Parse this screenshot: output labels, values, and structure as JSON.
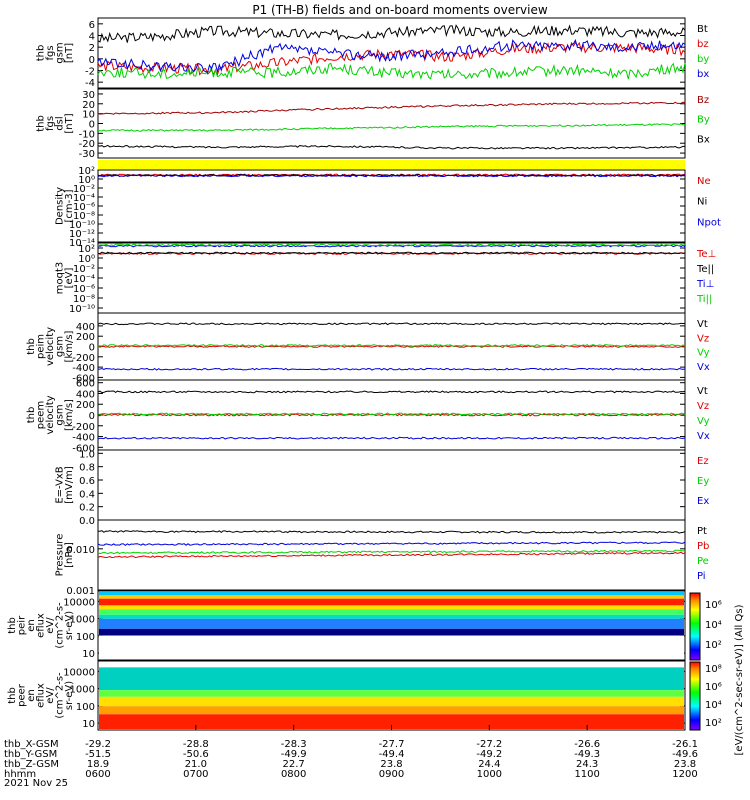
{
  "title": "P1 (TH-B) fields and on-board moments overview",
  "colors": {
    "black": "#000000",
    "red": "#e00000",
    "green": "#00d000",
    "blue": "#0000e0",
    "darkred": "#a00000",
    "yellow": "#ffff00"
  },
  "chart_data": [
    {
      "type": "line",
      "panel": "fgs_gsm",
      "ylabel": [
        "thb",
        "fgs",
        "gsm",
        "[nT]"
      ],
      "ylim": [
        -5,
        7
      ],
      "yticks": [
        "6",
        "4",
        "2",
        "0",
        "-2",
        "-4"
      ],
      "ytickvals": [
        6,
        4,
        2,
        0,
        -2,
        -4
      ],
      "series": [
        {
          "name": "Bt",
          "color": "black",
          "x": [
            0,
            0.1,
            0.2,
            0.3,
            0.4,
            0.5,
            0.6,
            0.7,
            0.8,
            0.9,
            1
          ],
          "y": [
            3.4,
            3.9,
            4.8,
            4.4,
            4.1,
            4.6,
            4.9,
            4.6,
            5.0,
            4.5,
            4.6
          ]
        },
        {
          "name": "bz",
          "color": "red",
          "x": [
            0,
            0.1,
            0.2,
            0.3,
            0.4,
            0.5,
            0.6,
            0.7,
            0.8,
            0.9,
            1
          ],
          "y": [
            -1.2,
            -1.6,
            -1.9,
            -0.8,
            0.4,
            0.9,
            0.3,
            1.6,
            2.0,
            1.9,
            1.5
          ]
        },
        {
          "name": "by",
          "color": "green",
          "x": [
            0,
            0.1,
            0.2,
            0.3,
            0.4,
            0.5,
            0.6,
            0.7,
            0.8,
            0.9,
            1
          ],
          "y": [
            -2.2,
            -2.6,
            -2.3,
            -2.4,
            -1.5,
            -2.5,
            -2.8,
            -2.4,
            -1.9,
            -2.6,
            -1.4
          ]
        },
        {
          "name": "bx",
          "color": "blue",
          "x": [
            0,
            0.1,
            0.2,
            0.3,
            0.4,
            0.5,
            0.6,
            0.7,
            0.8,
            0.9,
            1
          ],
          "y": [
            -0.6,
            -1.3,
            -1.7,
            1.8,
            1.0,
            0.4,
            1.1,
            2.3,
            2.4,
            2.1,
            2.5
          ]
        }
      ]
    },
    {
      "type": "line",
      "panel": "fgs_dsl",
      "ylabel": [
        "thb",
        "fgs",
        "dsl",
        "[nT]"
      ],
      "ylim": [
        -35,
        35
      ],
      "yticks": [
        "30",
        "20",
        "10",
        "0",
        "-10",
        "-20",
        "-30"
      ],
      "ytickvals": [
        30,
        20,
        10,
        0,
        -10,
        -20,
        -30
      ],
      "series": [
        {
          "name": "Bz",
          "color": "darkred",
          "x": [
            0,
            0.2,
            0.4,
            0.6,
            0.8,
            1
          ],
          "y": [
            10,
            11,
            15,
            18,
            20,
            21
          ]
        },
        {
          "name": "By",
          "color": "green",
          "x": [
            0,
            0.2,
            0.4,
            0.6,
            0.8,
            1
          ],
          "y": [
            -7,
            -7,
            -5,
            -3,
            -2,
            -1
          ]
        },
        {
          "name": "Bx",
          "color": "black",
          "x": [
            0,
            0.2,
            0.4,
            0.6,
            0.8,
            1
          ],
          "y": [
            -23,
            -24,
            -23,
            -25,
            -25,
            -24
          ]
        }
      ]
    },
    {
      "type": "line",
      "panel": "density",
      "ylabel": [
        "Density",
        "[cm-3]"
      ],
      "scale": "log",
      "yticks": [
        "10²",
        "10⁰",
        "10⁻²",
        "10⁻⁴",
        "10⁻⁶",
        "10⁻⁸",
        "10⁻¹⁰",
        "10⁻¹²",
        "10⁻¹⁴"
      ],
      "ytickvals": [
        2,
        0,
        -2,
        -4,
        -6,
        -8,
        -10,
        -12,
        -14
      ],
      "ylim": [
        -14,
        2
      ],
      "series": [
        {
          "name": "Ne",
          "color": "red",
          "x": [
            0,
            1
          ],
          "y": [
            0.9,
            0.9
          ]
        },
        {
          "name": "Ni",
          "color": "black",
          "x": [
            0,
            1
          ],
          "y": [
            0.8,
            0.8
          ]
        },
        {
          "name": "Npot",
          "color": "blue",
          "x": [
            0,
            1
          ],
          "y": [
            0.7,
            0.7
          ]
        }
      ]
    },
    {
      "type": "line",
      "panel": "temperature",
      "ylabel": [
        "moqt3",
        "[eV]"
      ],
      "scale": "log",
      "yticks": [
        "10²",
        "10⁰",
        "10⁻²",
        "10⁻⁴",
        "10⁻⁶",
        "10⁻⁸",
        "10⁻¹⁰"
      ],
      "ytickvals": [
        2,
        0,
        -2,
        -4,
        -6,
        -8,
        -10
      ],
      "ylim": [
        -11,
        3
      ],
      "series": [
        {
          "name": "Te⊥",
          "color": "red",
          "x": [
            0,
            1
          ],
          "y": [
            0.9,
            0.9
          ]
        },
        {
          "name": "Te||",
          "color": "black",
          "x": [
            0,
            1
          ],
          "y": [
            1.0,
            1.0
          ]
        },
        {
          "name": "Ti⊥",
          "color": "blue",
          "x": [
            0,
            1
          ],
          "y": [
            2.4,
            2.4
          ]
        },
        {
          "name": "Ti||",
          "color": "green",
          "x": [
            0,
            1
          ],
          "y": [
            2.6,
            2.6
          ]
        }
      ]
    },
    {
      "type": "line",
      "panel": "peim_velocity",
      "ylabel": [
        "thb",
        "peim",
        "velocity",
        "gsm",
        "[km/s]"
      ],
      "ylim": [
        -650,
        650
      ],
      "yticks": [
        "400",
        "200",
        "0",
        "-200",
        "-400",
        "-600"
      ],
      "ytickvals": [
        400,
        200,
        0,
        -200,
        -400,
        -600
      ],
      "series": [
        {
          "name": "Vt",
          "color": "black",
          "x": [
            0,
            1
          ],
          "y": [
            440,
            440
          ]
        },
        {
          "name": "Vz",
          "color": "red",
          "x": [
            0,
            1
          ],
          "y": [
            0,
            0
          ]
        },
        {
          "name": "Vy",
          "color": "green",
          "x": [
            0,
            1
          ],
          "y": [
            20,
            20
          ]
        },
        {
          "name": "Vx",
          "color": "blue",
          "x": [
            0,
            1
          ],
          "y": [
            -440,
            -440
          ]
        }
      ]
    },
    {
      "type": "line",
      "panel": "peem_velocity",
      "ylabel": [
        "thb",
        "peem",
        "velocity",
        "gsm",
        "[km/s]"
      ],
      "ylim": [
        -650,
        650
      ],
      "yticks": [
        "600",
        "400",
        "200",
        "0",
        "-200",
        "-400",
        "-600"
      ],
      "ytickvals": [
        600,
        400,
        200,
        0,
        -200,
        -400,
        -600
      ],
      "series": [
        {
          "name": "Vt",
          "color": "black",
          "x": [
            0,
            1
          ],
          "y": [
            430,
            430
          ]
        },
        {
          "name": "Vz",
          "color": "red",
          "x": [
            0,
            1
          ],
          "y": [
            0,
            0
          ]
        },
        {
          "name": "Vy",
          "color": "green",
          "x": [
            0,
            1
          ],
          "y": [
            20,
            20
          ]
        },
        {
          "name": "Vx",
          "color": "blue",
          "x": [
            0,
            1
          ],
          "y": [
            -430,
            -430
          ]
        }
      ]
    },
    {
      "type": "line",
      "panel": "efield",
      "ylabel": [
        "E=-VxB",
        "[mV/m]"
      ],
      "ylim": [
        0,
        1.05
      ],
      "yticks": [
        "1.0",
        "0.8",
        "0.6",
        "0.4",
        "0.2",
        "0.0"
      ],
      "ytickvals": [
        1,
        0.8,
        0.6,
        0.4,
        0.2,
        0
      ],
      "series": [
        {
          "name": "Ez",
          "color": "red",
          "x": [],
          "y": []
        },
        {
          "name": "Ey",
          "color": "green",
          "x": [],
          "y": []
        },
        {
          "name": "Ex",
          "color": "blue",
          "x": [],
          "y": []
        }
      ]
    },
    {
      "type": "line",
      "panel": "pressure",
      "ylabel": [
        "Pressure",
        "[nPa]"
      ],
      "scale": "log",
      "yticks": [
        "0.010",
        "0.001"
      ],
      "ytickvals": [
        -2,
        -3
      ],
      "ylim": [
        -3,
        -1.3
      ],
      "series": [
        {
          "name": "Pt",
          "color": "black",
          "x": [
            0,
            1
          ],
          "y": [
            -1.58,
            -1.6
          ]
        },
        {
          "name": "Pb",
          "color": "red",
          "x": [
            0,
            1
          ],
          "y": [
            -2.2,
            -2.1
          ]
        },
        {
          "name": "Pe",
          "color": "green",
          "x": [
            0,
            1
          ],
          "y": [
            -2.1,
            -2.05
          ]
        },
        {
          "name": "Pi",
          "color": "blue",
          "x": [
            0,
            1
          ],
          "y": [
            -1.9,
            -1.85
          ]
        }
      ]
    },
    {
      "type": "heatmap",
      "panel": "peir_eflux",
      "ylabel": [
        "thb",
        "peir",
        "en",
        "eflux",
        "eV/",
        "(cm^2-s-",
        "sr-eV)"
      ],
      "yticks": [
        "10000",
        "1000",
        "100",
        "10"
      ],
      "ytickvals": [
        4,
        3,
        2,
        1
      ]
    },
    {
      "type": "heatmap",
      "panel": "peer_eflux",
      "ylabel": [
        "thb",
        "peer",
        "en",
        "eflux",
        "eV/",
        "(cm^2-s-",
        "sr-eV)"
      ],
      "yticks": [
        "10000",
        "1000",
        "100",
        "10"
      ],
      "ytickvals": [
        4,
        3,
        2,
        1
      ]
    }
  ],
  "colorbar": {
    "label": "[eV/(cm^2-sec-sr-eV)] (All Qs)",
    "ticks_upper": [
      "10⁶",
      "10⁴",
      "10²"
    ],
    "ticks_lower": [
      "10⁸",
      "10⁶",
      "10⁴",
      "10²"
    ]
  },
  "xaxis": {
    "rows": [
      {
        "label": "thb_X-GSM",
        "values": [
          "-29.2",
          "-28.8",
          "-28.3",
          "-27.7",
          "-27.2",
          "-26.6",
          "-26.1"
        ]
      },
      {
        "label": "thb_Y-GSM",
        "values": [
          "-51.5",
          "-50.6",
          "-49.9",
          "-49.4",
          "-49.2",
          "-49.3",
          "-49.6"
        ]
      },
      {
        "label": "thb_Z-GSM",
        "values": [
          "18.9",
          "21.0",
          "22.7",
          "23.8",
          "24.4",
          "24.3",
          "23.8"
        ]
      },
      {
        "label": "hhmm",
        "values": [
          "0600",
          "0700",
          "0800",
          "0900",
          "1000",
          "1100",
          "1200"
        ]
      }
    ],
    "date": "2021 Nov 25"
  }
}
